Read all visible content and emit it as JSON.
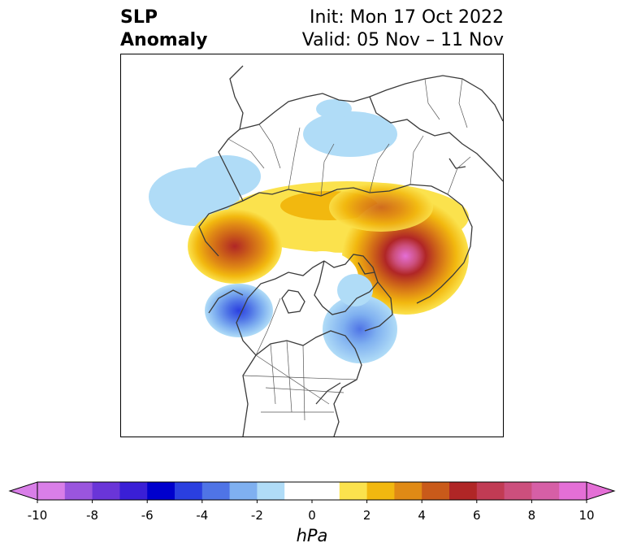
{
  "title": {
    "left_line1": "SLP",
    "left_line2": "Anomaly",
    "right_line1": "Init: Mon 17 Oct 2022",
    "right_line2": "Valid: 05 Nov – 11 Nov"
  },
  "colorbar": {
    "unit": "hPa",
    "ticks": [
      "-10",
      "-8",
      "-6",
      "-4",
      "-2",
      "0",
      "2",
      "4",
      "6",
      "8",
      "10"
    ],
    "colors": [
      "#d97ee8",
      "#9a55de",
      "#6a35d8",
      "#3a1fd6",
      "#0000cd",
      "#2a3fe0",
      "#4f74e6",
      "#7fb0f0",
      "#b0dcf7",
      "#ffffff",
      "#ffffff",
      "#fbe24d",
      "#f2b80f",
      "#e08a15",
      "#c95a1a",
      "#b02626",
      "#c13b54",
      "#cc4f7d",
      "#d65fa6",
      "#e46fd6"
    ],
    "levels": [
      -10,
      -9,
      -8,
      -7,
      -6,
      -5,
      -4,
      -3,
      -2,
      -1,
      0,
      1,
      2,
      3,
      4,
      5,
      6,
      7,
      8,
      9,
      10
    ]
  },
  "map": {
    "projection": "polar-stereographic",
    "region": "Northern Hemisphere / North America",
    "field": "sea level pressure anomaly",
    "features": [
      {
        "name": "positive-anomaly-siberia",
        "sign": "positive",
        "max_hpa": 10
      },
      {
        "name": "positive-anomaly-alaska-bering",
        "sign": "positive",
        "max_hpa": 6
      },
      {
        "name": "positive-anomaly-arctic-ocean",
        "sign": "positive",
        "max_hpa": 4
      },
      {
        "name": "negative-anomaly-gulf-of-alaska",
        "sign": "negative",
        "min_hpa": -5
      },
      {
        "name": "negative-anomaly-north-atlantic",
        "sign": "negative",
        "min_hpa": -4
      },
      {
        "name": "negative-anomaly-north-pacific",
        "sign": "negative",
        "min_hpa": -2
      },
      {
        "name": "negative-anomaly-scandinavia",
        "sign": "negative",
        "min_hpa": -2
      }
    ]
  }
}
